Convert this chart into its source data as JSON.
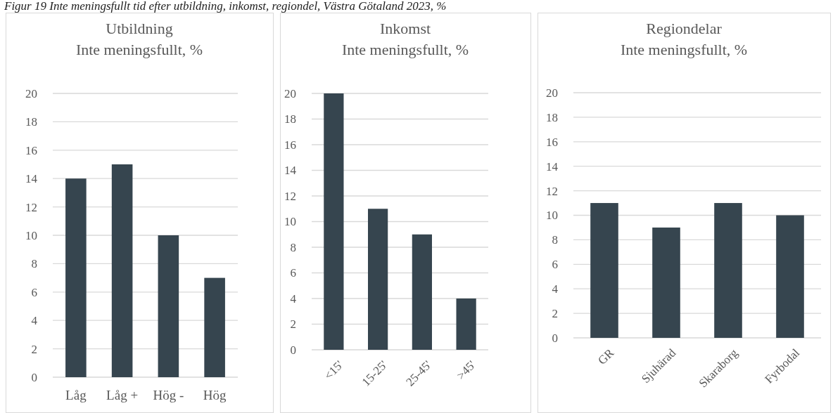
{
  "chart_data": [
    {
      "type": "bar",
      "title": "Utbildning",
      "subtitle": "Inte meningsfullt, %",
      "annotations": [
        "Figur 19 Inte meningsfullt tid efter utbildning, inkomst, regiondel, Västra Götaland 2023, %"
      ],
      "categories": [
        "Låg",
        "Låg +",
        "Hög -",
        "Hög"
      ],
      "values": [
        14,
        15,
        10,
        7
      ],
      "color": "#36454f",
      "ylim": [
        0,
        20
      ],
      "yticks": [
        0,
        2,
        4,
        6,
        8,
        10,
        12,
        14,
        16,
        18,
        20
      ],
      "grid": "y"
    },
    {
      "type": "bar",
      "title": "Inkomst",
      "subtitle": "Inte meningsfullt, %",
      "categories": [
        "<15'",
        "15-25'",
        "25-45'",
        ">45'"
      ],
      "values": [
        20,
        11,
        9,
        4
      ],
      "color": "#36454f",
      "ylim": [
        0,
        20
      ],
      "yticks": [
        0,
        2,
        4,
        6,
        8,
        10,
        12,
        14,
        16,
        18,
        20
      ],
      "grid": "y"
    },
    {
      "type": "bar",
      "title": "Regiondelar",
      "subtitle": "Inte meningsfullt, %",
      "categories": [
        "GR",
        "Sjuhärad",
        "Skaraborg",
        "Fyrbodal"
      ],
      "values": [
        11,
        9,
        11,
        10
      ],
      "color": "#36454f",
      "ylim": [
        0,
        20
      ],
      "yticks": [
        0,
        2,
        4,
        6,
        8,
        10,
        12,
        14,
        16,
        18,
        20
      ],
      "grid": "y"
    }
  ]
}
